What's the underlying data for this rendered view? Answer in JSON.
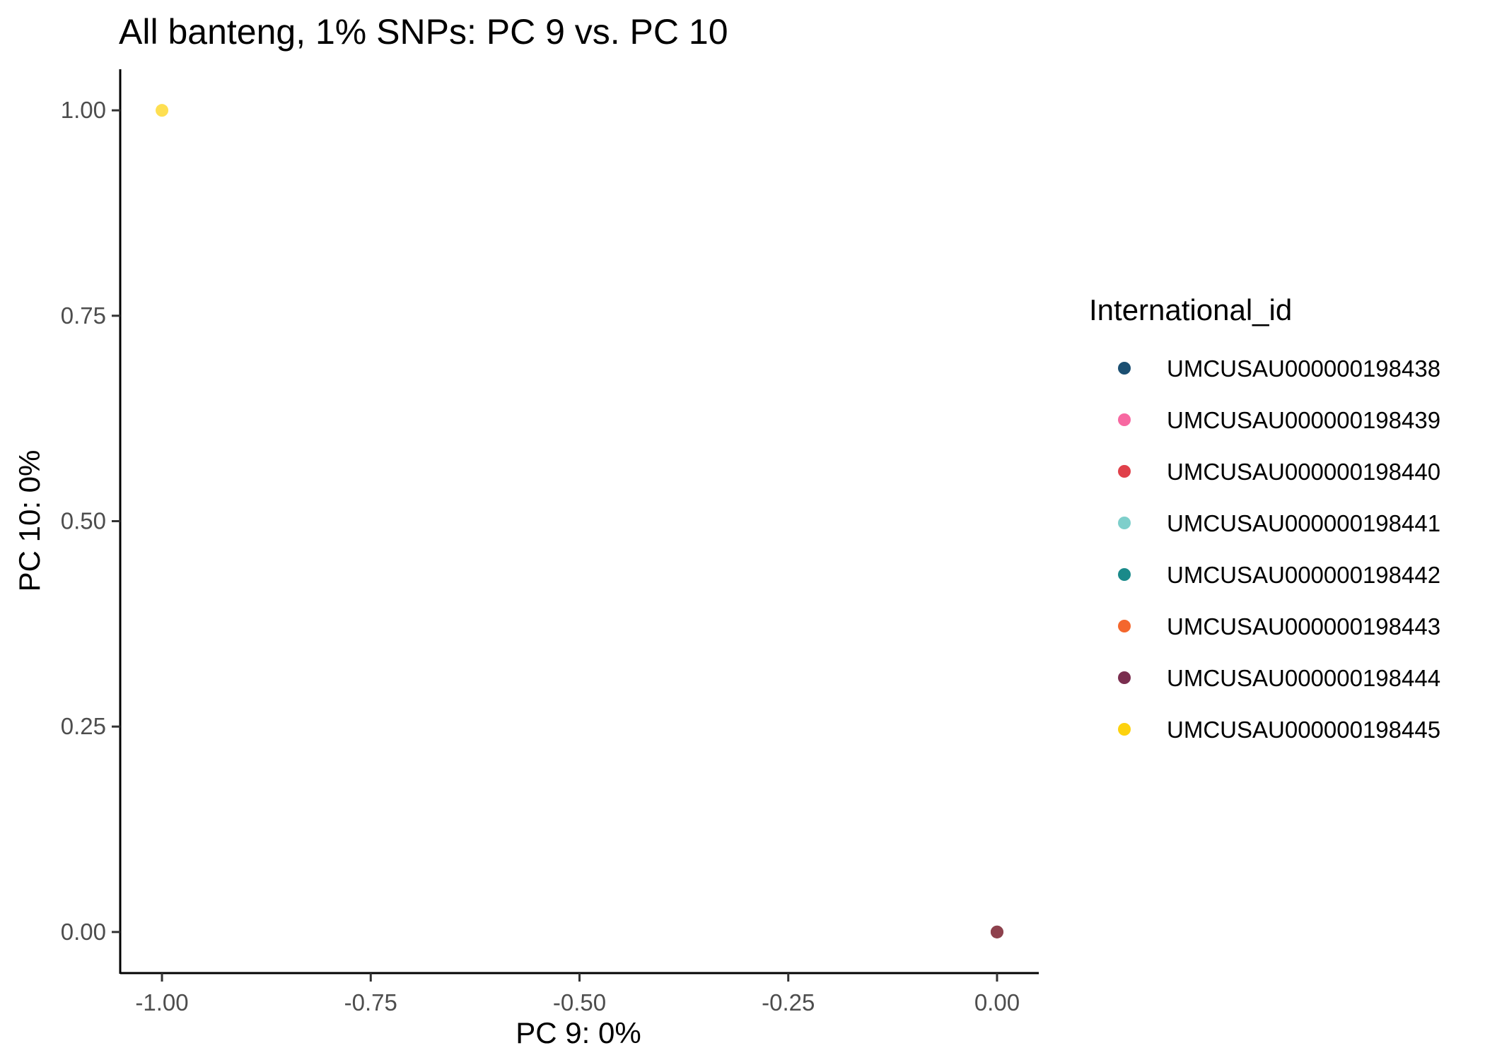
{
  "chart_data": {
    "type": "scatter",
    "title": "All banteng, 1% SNPs: PC 9 vs. PC 10",
    "xlabel": "PC 9: 0%",
    "ylabel": "PC 10: 0%",
    "xlim": [
      -1.05,
      0.05
    ],
    "ylim": [
      -0.05,
      1.05
    ],
    "x_ticks": [
      -1.0,
      -0.75,
      -0.5,
      -0.25,
      0.0
    ],
    "x_tick_labels": [
      "-1.00",
      "-0.75",
      "-0.50",
      "-0.25",
      "0.00"
    ],
    "y_ticks": [
      0.0,
      0.25,
      0.5,
      0.75,
      1.0
    ],
    "y_tick_labels": [
      "0.00",
      "0.25",
      "0.50",
      "0.75",
      "1.00"
    ],
    "grid": false,
    "legend_title": "International_id",
    "legend_position": "right",
    "series": [
      {
        "name": "UMCUSAU000000198438",
        "color": "#1b4f72",
        "points": [
          [
            0.0,
            0.0
          ]
        ]
      },
      {
        "name": "UMCUSAU000000198439",
        "color": "#f768a1",
        "points": [
          [
            0.0,
            0.0
          ]
        ]
      },
      {
        "name": "UMCUSAU000000198440",
        "color": "#e0404a",
        "points": [
          [
            0.0,
            0.0
          ]
        ]
      },
      {
        "name": "UMCUSAU000000198441",
        "color": "#7ecfcb",
        "points": [
          [
            0.0,
            0.0
          ]
        ]
      },
      {
        "name": "UMCUSAU000000198442",
        "color": "#1a8a8a",
        "points": [
          [
            0.0,
            0.0
          ]
        ]
      },
      {
        "name": "UMCUSAU000000198443",
        "color": "#f4672d",
        "points": [
          [
            0.0,
            0.0
          ]
        ]
      },
      {
        "name": "UMCUSAU000000198444",
        "color": "#7a2e4f",
        "points": [
          [
            0.0,
            0.0
          ]
        ]
      },
      {
        "name": "UMCUSAU000000198445",
        "color": "#fdd20e",
        "points": [
          [
            -1.0,
            1.0
          ]
        ]
      }
    ]
  }
}
